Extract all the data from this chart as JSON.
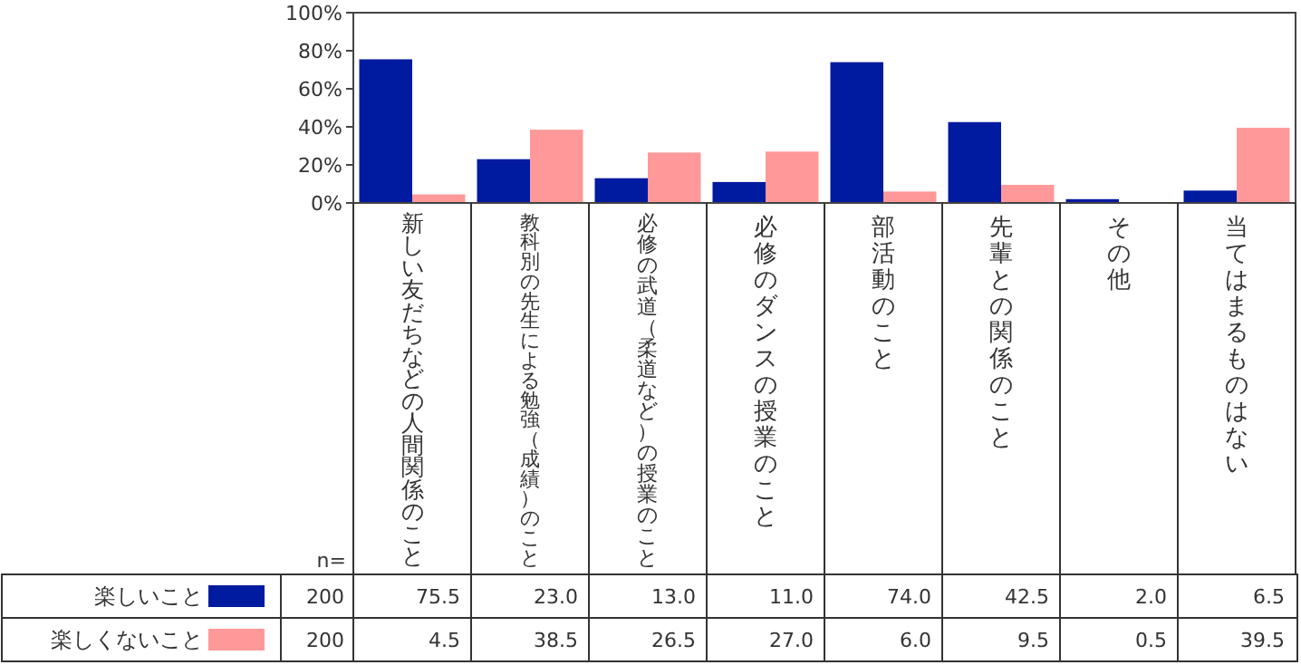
{
  "chart_data": {
    "type": "bar",
    "categories": [
      "新しい友だちなどの人間関係のこと",
      "教科別の先生による勉強（成績）のこと",
      "必修の武道（柔道など）の授業のこと",
      "必修のダンスの授業のこと",
      "部活動のこと",
      "先輩との関係のこと",
      "その他",
      "当てはまるものはない"
    ],
    "series": [
      {
        "name": "楽しいこと",
        "color": "#001aa0",
        "values": [
          75.5,
          23.0,
          13.0,
          11.0,
          74.0,
          42.5,
          2.0,
          6.5
        ],
        "value_labels": [
          "75.5",
          "23.0",
          "13.0",
          "11.0",
          "74.0",
          "42.5",
          "2.0",
          "6.5"
        ]
      },
      {
        "name": "楽しくないこと",
        "color": "#ff9999",
        "values": [
          4.5,
          38.5,
          26.5,
          27.0,
          6.0,
          9.5,
          0.5,
          39.5
        ],
        "value_labels": [
          "4.5",
          "38.5",
          "26.5",
          "27.0",
          "6.0",
          "9.5",
          "0.5",
          "39.5"
        ]
      }
    ],
    "ylim": [
      0,
      100
    ],
    "yticks": [
      {
        "value": 0,
        "label": "0%"
      },
      {
        "value": 20,
        "label": "20%"
      },
      {
        "value": 40,
        "label": "40%"
      },
      {
        "value": 60,
        "label": "60%"
      },
      {
        "value": 80,
        "label": "80%"
      },
      {
        "value": 100,
        "label": "100%"
      }
    ],
    "legend": "bottom",
    "grid": false,
    "annotations": [
      "n=",
      "200",
      "200"
    ]
  }
}
